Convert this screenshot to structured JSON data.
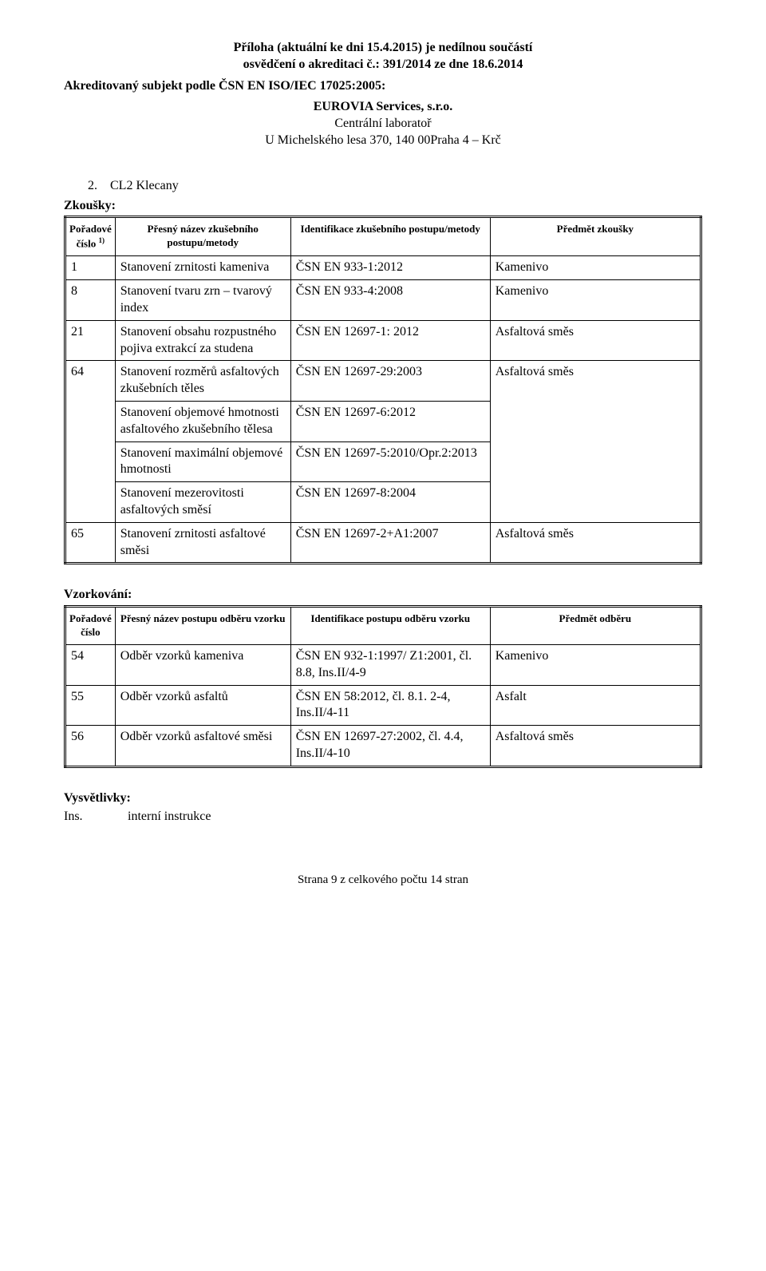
{
  "header": {
    "line1": "Příloha (aktuální ke dni 15.4.2015) je nedílnou součástí",
    "line2": "osvědčení o akreditaci č.: 391/2014  ze dne 18.6.2014",
    "accredited": "Akreditovaný subjekt podle ČSN EN ISO/IEC 17025:2005:",
    "company": "EUROVIA Services, s.r.o.",
    "addr1": "Centrální laboratoř",
    "addr2": "U Michelského lesa 370, 140 00Praha 4 – Krč"
  },
  "section": {
    "num": "2.",
    "name": "CL2 Klecany",
    "zkouskyLabel": "Zkoušky:"
  },
  "tests": {
    "headers": {
      "colNum": "Pořadové číslo",
      "colNumSup": "1)",
      "colName": "Přesný název zkušebního postupu/metody",
      "colId": "Identifikace zkušebního postupu/metody",
      "colSubj": "Předmět zkoušky"
    },
    "rows": [
      {
        "num": "1",
        "name": "Stanovení zrnitosti kameniva",
        "id": "ČSN EN 933-1:2012",
        "subj": "Kamenivo"
      },
      {
        "num": "8",
        "name": "Stanovení tvaru zrn – tvarový index",
        "id": "ČSN EN 933-4:2008",
        "subj": "Kamenivo"
      },
      {
        "num": "21",
        "name": "Stanovení obsahu rozpustného pojiva extrakcí za studena",
        "id": "ČSN EN 12697-1: 2012",
        "subj": "Asfaltová směs"
      }
    ],
    "row64": {
      "num": "64",
      "subj": "Asfaltová směs",
      "sub": [
        {
          "name": "Stanovení rozměrů asfaltových zkušebních těles",
          "id": "ČSN EN 12697-29:2003"
        },
        {
          "name": "Stanovení objemové hmotnosti asfaltového zkušebního tělesa",
          "id": "ČSN EN 12697-6:2012"
        },
        {
          "name": "Stanovení maximální objemové hmotnosti",
          "id": "ČSN EN 12697-5:2010/Opr.2:2013"
        },
        {
          "name": "Stanovení mezerovitosti asfaltových směsí",
          "id": "ČSN EN 12697-8:2004"
        }
      ]
    },
    "row65": {
      "num": "65",
      "name": "Stanovení zrnitosti asfaltové směsi",
      "id": "ČSN EN 12697-2+A1:2007",
      "subj": "Asfaltová směs"
    }
  },
  "sampling": {
    "title": "Vzorkování:",
    "headers": {
      "colNum": "Pořadové číslo",
      "colName": "Přesný název postupu odběru vzorku",
      "colId": "Identifikace postupu odběru vzorku",
      "colSubj": "Předmět odběru"
    },
    "rows": [
      {
        "num": "54",
        "name": "Odběr vzorků kameniva",
        "id": "ČSN EN 932-1:1997/ Z1:2001, čl. 8.8, Ins.II/4-9",
        "subj": "Kamenivo"
      },
      {
        "num": "55",
        "name": "Odběr vzorků asfaltů",
        "id": "ČSN EN 58:2012, čl. 8.1. 2-4, Ins.II/4-11",
        "subj": "Asfalt"
      },
      {
        "num": "56",
        "name": "Odběr vzorků asfaltové směsi",
        "id": "ČSN EN 12697-27:2002, čl. 4.4, Ins.II/4-10",
        "subj": "Asfaltová směs"
      }
    ]
  },
  "legend": {
    "title": "Vysvětlivky:",
    "key": "Ins.",
    "val": "interní instrukce"
  },
  "footer": "Strana 9 z celkového počtu 14 stran"
}
